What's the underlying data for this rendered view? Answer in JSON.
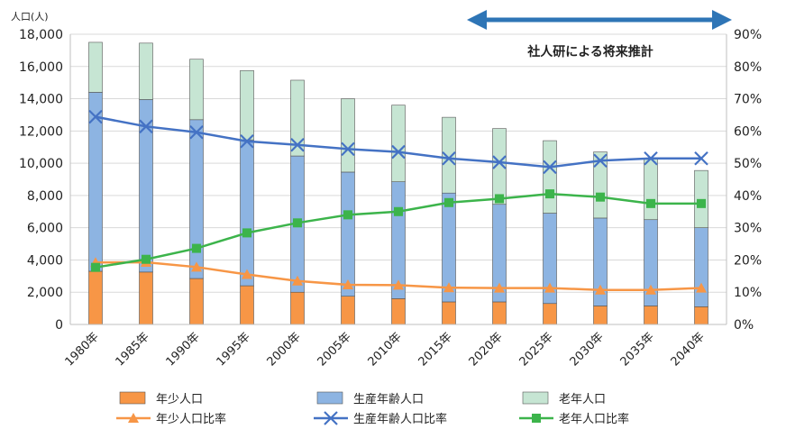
{
  "chart_data": {
    "type": "bar",
    "stacked": true,
    "title": "",
    "xlabel": "",
    "y_unit": "人口(人)",
    "ylim": [
      0,
      18000
    ],
    "y_ticks": [
      "0",
      "2,000",
      "4,000",
      "6,000",
      "8,000",
      "10,000",
      "12,000",
      "14,000",
      "16,000",
      "18,000"
    ],
    "y2lim": [
      0,
      90
    ],
    "y2_ticks": [
      "0%",
      "10%",
      "20%",
      "30%",
      "40%",
      "50%",
      "60%",
      "70%",
      "80%",
      "90%"
    ],
    "grid": true,
    "legend_position": "bottom",
    "categories": [
      "1980年",
      "1985年",
      "1990年",
      "1995年",
      "2000年",
      "2005年",
      "2010年",
      "2015年",
      "2020年",
      "2025年",
      "2030年",
      "2035年",
      "2040年"
    ],
    "series": [
      {
        "name": "年少人口",
        "kind": "bar",
        "axis": "left",
        "color": "#f79646",
        "values": [
          3300,
          3250,
          2850,
          2400,
          2000,
          1750,
          1600,
          1400,
          1400,
          1300,
          1150,
          1150,
          1100
        ]
      },
      {
        "name": "生産年齢人口",
        "kind": "bar",
        "axis": "left",
        "color": "#8db4e2",
        "values": [
          11100,
          10700,
          9850,
          9050,
          8450,
          7700,
          7250,
          6750,
          6050,
          5600,
          5450,
          5350,
          4900
        ]
      },
      {
        "name": "老年人口",
        "kind": "bar",
        "axis": "left",
        "color": "#c6e5d3",
        "values": [
          3100,
          3500,
          3750,
          4300,
          4700,
          4550,
          4750,
          4700,
          4700,
          4500,
          4100,
          3800,
          3550
        ]
      },
      {
        "name": "年少人口比率",
        "kind": "line",
        "axis": "right",
        "color": "#f79646",
        "marker": "triangle",
        "values": [
          19.2,
          19.3,
          17.8,
          15.5,
          13.5,
          12.3,
          12.2,
          11.4,
          11.3,
          11.3,
          10.7,
          10.7,
          11.3
        ]
      },
      {
        "name": "生産年齢人口比率",
        "kind": "line",
        "axis": "right",
        "color": "#4472c4",
        "marker": "x",
        "values": [
          64.4,
          61.4,
          59.6,
          56.8,
          55.7,
          54.4,
          53.5,
          51.5,
          50.3,
          48.8,
          50.8,
          51.5,
          51.5
        ]
      },
      {
        "name": "老年人口比率",
        "kind": "line",
        "axis": "right",
        "color": "#3cb44b",
        "marker": "square",
        "values": [
          17.7,
          20.2,
          23.6,
          28.4,
          31.5,
          34.0,
          35.0,
          37.8,
          39.0,
          40.5,
          39.5,
          37.5,
          37.5
        ]
      }
    ],
    "annotation": {
      "text": "社人研による将来推計",
      "color": "#2e75b6"
    }
  }
}
